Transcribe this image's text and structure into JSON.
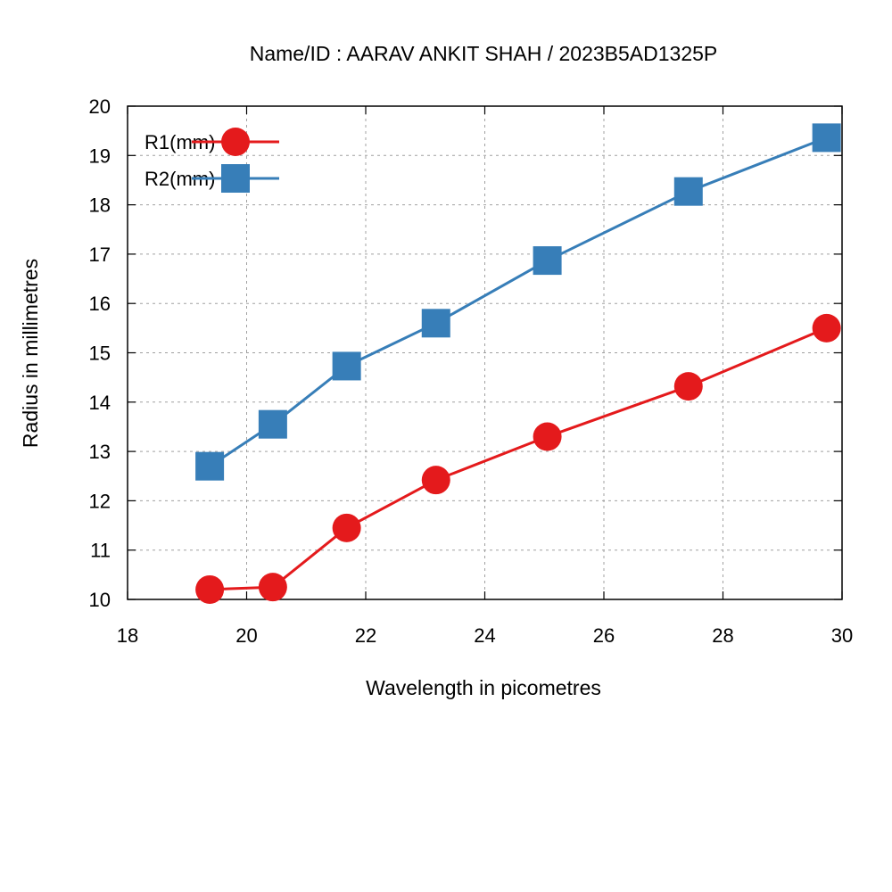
{
  "chart_data": {
    "type": "line",
    "title": "Name/ID : AARAV ANKIT SHAH / 2023B5AD1325P",
    "xlabel": "Wavelength in picometres",
    "ylabel": "Radius in millimetres",
    "xlim": [
      18,
      30
    ],
    "ylim": [
      10,
      20
    ],
    "xticks": [
      "18",
      "20",
      "22",
      "24",
      "26",
      "28",
      "30"
    ],
    "yticks": [
      "10",
      "11",
      "12",
      "13",
      "14",
      "15",
      "16",
      "17",
      "18",
      "19",
      "20"
    ],
    "grid": true,
    "legend_position": "top-left",
    "x": [
      19.38,
      20.44,
      21.68,
      23.18,
      25.05,
      27.42,
      29.74
    ],
    "series": [
      {
        "name": "R1(mm)",
        "color": "#e41a1c",
        "marker": "circle",
        "values": [
          10.2,
          10.25,
          11.45,
          12.42,
          13.3,
          14.32,
          15.5
        ]
      },
      {
        "name": "R2(mm)",
        "color": "#377eb8",
        "marker": "square",
        "values": [
          12.7,
          13.55,
          14.73,
          15.6,
          16.87,
          18.27,
          19.36
        ]
      }
    ]
  }
}
